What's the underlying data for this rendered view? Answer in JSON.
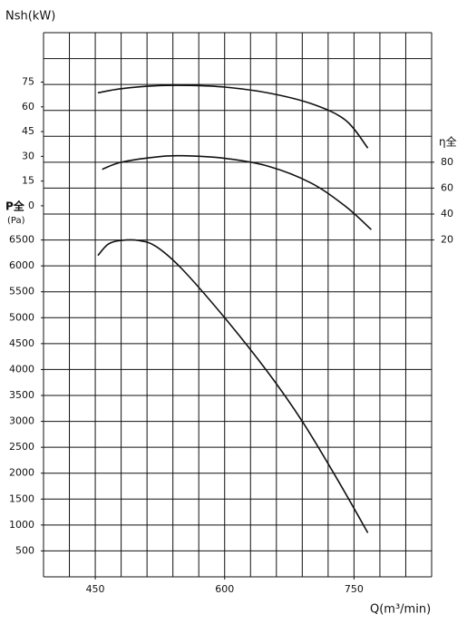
{
  "chart_data": {
    "type": "line",
    "y3_title": "Nsh(kW)",
    "y_title": "P全",
    "y_unit": "(Pa)",
    "y2_title": "η全",
    "x_title": "Q(m³/min)",
    "xlim": [
      390,
      840
    ],
    "xticks": [
      450,
      600,
      750
    ],
    "ylim": [
      0,
      10500
    ],
    "yticks": [
      500,
      1000,
      1500,
      2000,
      2500,
      3000,
      3500,
      4000,
      4500,
      5000,
      5500,
      6000,
      6500
    ],
    "y2lim": [
      -240,
      180
    ],
    "y2ticks": [
      20,
      40,
      60,
      80
    ],
    "y3lim": [
      -225,
      105
    ],
    "y3ticks": [
      0,
      15,
      30,
      45,
      60,
      75
    ],
    "color": "#111111",
    "series": [
      {
        "axis": "y3",
        "x": [
          453,
          480,
          520,
          560,
          600,
          650,
          700,
          740,
          766
        ],
        "values": [
          68.5,
          71,
          72.8,
          73,
          72,
          68.5,
          62,
          52,
          35
        ]
      },
      {
        "axis": "y2",
        "x": [
          458,
          480,
          520,
          550,
          600,
          650,
          700,
          740,
          770
        ],
        "values": [
          74.5,
          80,
          84,
          85,
          83,
          77,
          64,
          46,
          28
        ]
      },
      {
        "axis": "y",
        "x": [
          453,
          465,
          480,
          500,
          520,
          550,
          600,
          650,
          690,
          730,
          766
        ],
        "values": [
          6200,
          6420,
          6490,
          6490,
          6380,
          5950,
          5000,
          3950,
          3000,
          1900,
          850
        ]
      }
    ]
  }
}
